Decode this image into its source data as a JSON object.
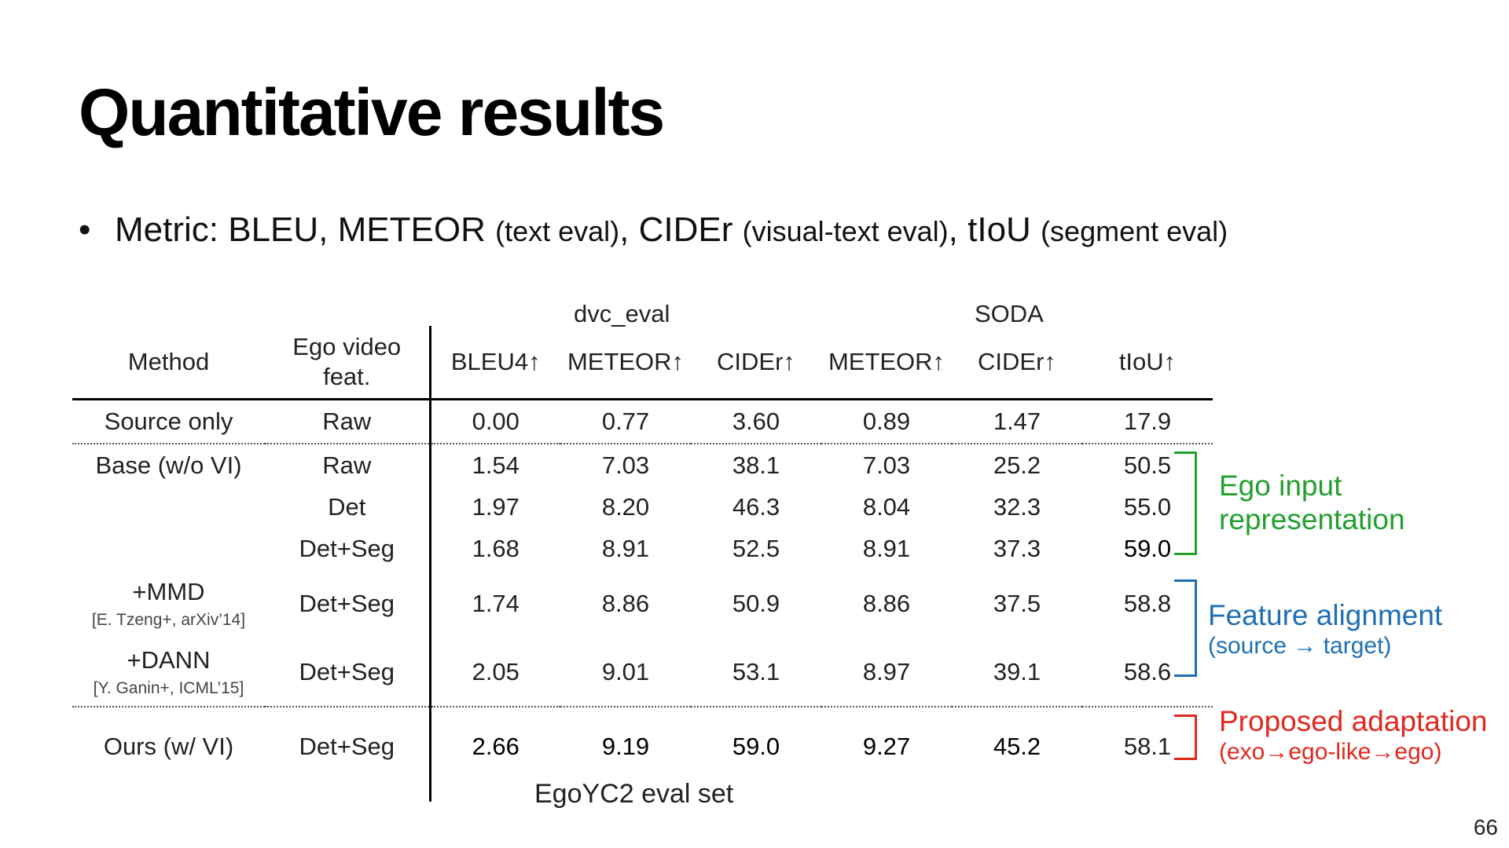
{
  "slide": {
    "title": "Quantitative results",
    "bullet": {
      "dot": "•",
      "lead": "Metric: BLEU, METEOR",
      "p1": "(text eval)",
      "c1": ", CIDEr",
      "p2": "(visual-text eval)",
      "c2": ", tIoU",
      "p3": "(segment eval)"
    },
    "page_number": "66",
    "caption": "EgoYC2 eval set"
  },
  "table": {
    "group_headers": {
      "dvc_eval": "dvc_eval",
      "soda": "SODA"
    },
    "headers": {
      "method": "Method",
      "feat_line1": "Ego video",
      "feat_line2": "feat.",
      "cols": [
        "BLEU4↑",
        "METEOR↑",
        "CIDEr↑",
        "METEOR↑",
        "CIDEr↑",
        "tIoU↑"
      ]
    },
    "rows": {
      "source_only": {
        "method": "Source only",
        "feat": "Raw",
        "v": [
          "0.00",
          "0.77",
          "3.60",
          "0.89",
          "1.47",
          "17.9"
        ]
      },
      "base_raw": {
        "method": "Base (w/o VI)",
        "feat": "Raw",
        "v": [
          "1.54",
          "7.03",
          "38.1",
          "7.03",
          "25.2",
          "50.5"
        ]
      },
      "base_det": {
        "method": "",
        "feat": "Det",
        "v": [
          "1.97",
          "8.20",
          "46.3",
          "8.04",
          "32.3",
          "55.0"
        ]
      },
      "base_detseg": {
        "method": "",
        "feat": "Det+Seg",
        "v": [
          "1.68",
          "8.91",
          "52.5",
          "8.91",
          "37.3",
          "59.0"
        ]
      },
      "mmd": {
        "method": "+MMD",
        "cite": "[E. Tzeng+, arXiv’14]",
        "feat": "Det+Seg",
        "v": [
          "1.74",
          "8.86",
          "50.9",
          "8.86",
          "37.5",
          "58.8"
        ]
      },
      "dann": {
        "method": "+DANN",
        "cite": "[Y. Ganin+, ICML’15]",
        "feat": "Det+Seg",
        "v": [
          "2.05",
          "9.01",
          "53.1",
          "8.97",
          "39.1",
          "58.6"
        ]
      },
      "ours": {
        "method": "Ours (w/ VI)",
        "feat": "Det+Seg",
        "v": [
          "2.66",
          "9.19",
          "59.0",
          "9.27",
          "45.2",
          "58.1"
        ]
      }
    }
  },
  "annotations": {
    "ego": {
      "line1": "Ego input",
      "line2": "representation",
      "color": "#22a02e"
    },
    "feat": {
      "line1": "Feature alignment",
      "line2": "(source → target)",
      "color": "#1f6fb4"
    },
    "proposed": {
      "line1": "Proposed adaptation",
      "line2": "(exo→ego-like→ego)",
      "color": "#e0281e"
    }
  }
}
